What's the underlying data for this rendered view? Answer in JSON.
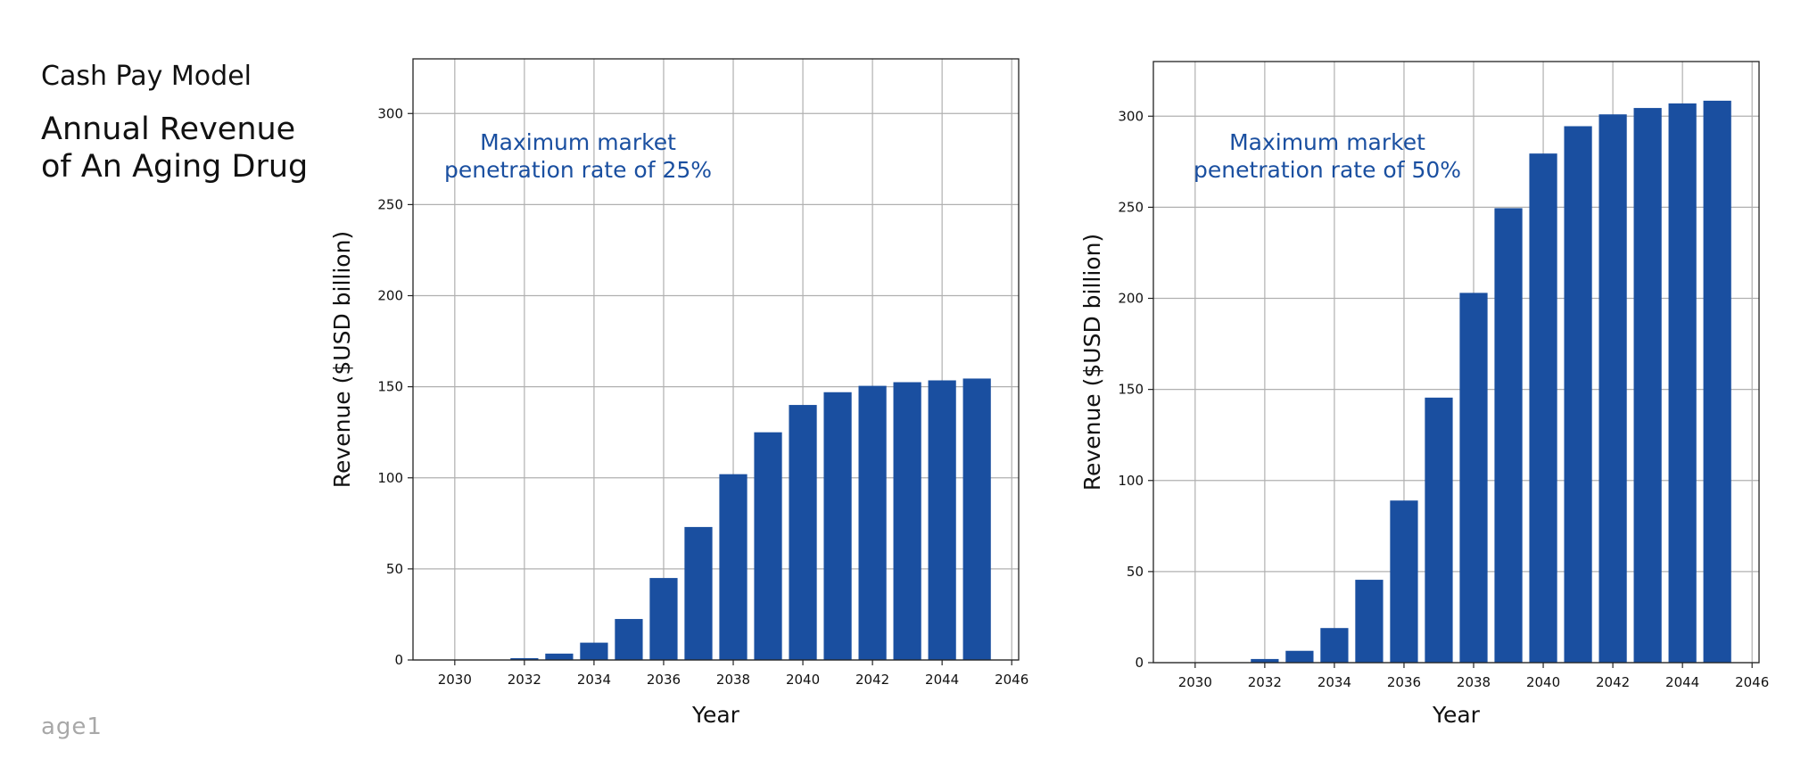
{
  "page": {
    "subtitle": "Cash Pay Model",
    "title": "Annual Revenue of An Aging Drug",
    "logo": "age1"
  },
  "colors": {
    "bar": "#1a4fa0",
    "grid": "#b0b0b0",
    "annotation": "#1a4fa0"
  },
  "chart_data": [
    {
      "type": "bar",
      "annotation": [
        "Maximum market",
        "penetration rate of 25%"
      ],
      "xlabel": "Year",
      "ylabel": "Revenue ($USD billion)",
      "x": [
        2032,
        2033,
        2034,
        2035,
        2036,
        2037,
        2038,
        2039,
        2040,
        2041,
        2042,
        2043,
        2044,
        2045
      ],
      "values": [
        1,
        3.5,
        9.5,
        22.5,
        45,
        73,
        102,
        125,
        140,
        147,
        150.5,
        152.5,
        153.5,
        154.5
      ],
      "xlim": [
        2028.8,
        2046.2
      ],
      "ylim": [
        0,
        330
      ],
      "xticks": [
        2030,
        2032,
        2034,
        2036,
        2038,
        2040,
        2042,
        2044,
        2046
      ],
      "yticks": [
        0,
        50,
        100,
        150,
        200,
        250,
        300
      ],
      "grid": true
    },
    {
      "type": "bar",
      "annotation": [
        "Maximum market",
        "penetration rate of 50%"
      ],
      "xlabel": "Year",
      "ylabel": "Revenue ($USD billion)",
      "x": [
        2032,
        2033,
        2034,
        2035,
        2036,
        2037,
        2038,
        2039,
        2040,
        2041,
        2042,
        2043,
        2044,
        2045
      ],
      "values": [
        2,
        6.5,
        19,
        45.5,
        89,
        145.5,
        203,
        249.5,
        279.5,
        294.5,
        301,
        304.5,
        307,
        308.5
      ],
      "xlim": [
        2028.8,
        2046.2
      ],
      "ylim": [
        0,
        330
      ],
      "xticks": [
        2030,
        2032,
        2034,
        2036,
        2038,
        2040,
        2042,
        2044,
        2046
      ],
      "yticks": [
        0,
        50,
        100,
        150,
        200,
        250,
        300
      ],
      "grid": true
    }
  ]
}
